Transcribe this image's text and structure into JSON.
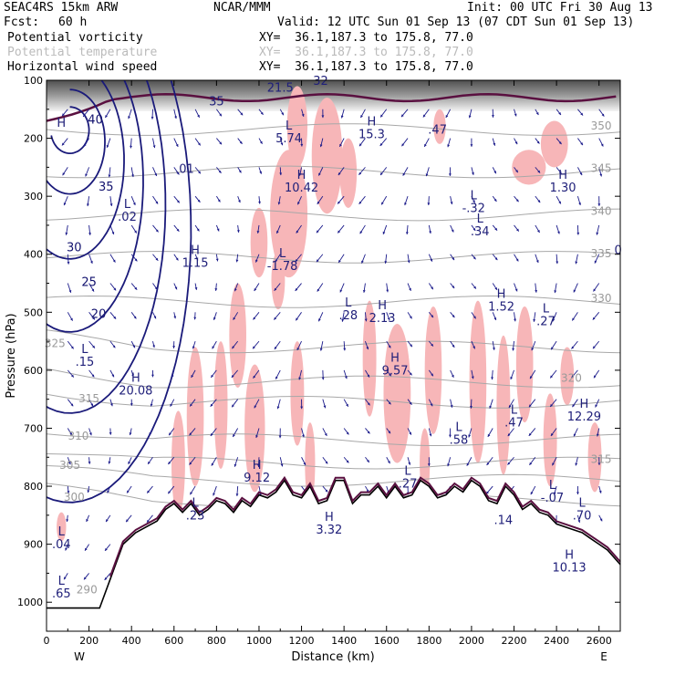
{
  "header": {
    "model": "SEAC4RS 15km ARW",
    "org": "NCAR/MMM",
    "init": "Init: 00 UTC Fri 30 Aug 13",
    "fcst_label": "Fcst:",
    "fcst_value": "60 h",
    "valid": "Valid: 12 UTC Sun 01 Sep 13 (07 CDT Sun 01 Sep 13)"
  },
  "fields": [
    {
      "name": "Potential vorticity",
      "xy": "XY=  36.1,187.3 to 175.8, 77.0",
      "color": "#000000"
    },
    {
      "name": "Potential temperature",
      "xy": "XY=  36.1,187.3 to 175.8, 77.0",
      "color": "#bbbbbb"
    },
    {
      "name": "Horizontal wind speed",
      "xy": "XY=  36.1,187.3 to 175.8, 77.0",
      "color": "#000000"
    }
  ],
  "colors": {
    "pv_fill": "#f7b6b8",
    "wind_contour": "#1a1a7a",
    "theta_contour": "#a8a8a8",
    "pv_contour": "#5a1040",
    "vectors": "#1a1a8a",
    "terrain": "#000000"
  },
  "chart_data": {
    "type": "cross-section",
    "xlabel": "Distance (km)",
    "ylabel": "Pressure (hPa)",
    "xlim": [
      0,
      2700
    ],
    "ylim": [
      1050,
      100
    ],
    "x_ticks": [
      "0",
      "200",
      "400",
      "600",
      "800",
      "1000",
      "1200",
      "1400",
      "1600",
      "1800",
      "2000",
      "2200",
      "2400",
      "2600"
    ],
    "y_ticks": [
      "100",
      "200",
      "300",
      "400",
      "500",
      "600",
      "700",
      "800",
      "900",
      "1000"
    ],
    "west_label": "W",
    "east_label": "E",
    "terrain": {
      "x": [
        0,
        250,
        300,
        360,
        420,
        470,
        520,
        560,
        600,
        640,
        680,
        720,
        760,
        800,
        840,
        880,
        920,
        960,
        1000,
        1040,
        1080,
        1120,
        1160,
        1200,
        1240,
        1280,
        1320,
        1360,
        1400,
        1440,
        1480,
        1520,
        1560,
        1600,
        1640,
        1680,
        1720,
        1760,
        1800,
        1840,
        1880,
        1920,
        1960,
        2000,
        2040,
        2080,
        2120,
        2160,
        2200,
        2240,
        2280,
        2320,
        2360,
        2400,
        2440,
        2480,
        2520,
        2560,
        2600,
        2640,
        2700
      ],
      "p": [
        1010,
        1010,
        960,
        900,
        880,
        870,
        860,
        840,
        830,
        845,
        830,
        850,
        840,
        825,
        830,
        845,
        825,
        835,
        815,
        820,
        810,
        790,
        815,
        820,
        800,
        830,
        825,
        790,
        790,
        830,
        815,
        815,
        800,
        820,
        800,
        820,
        815,
        790,
        800,
        820,
        815,
        800,
        810,
        790,
        800,
        825,
        830,
        800,
        815,
        840,
        830,
        845,
        850,
        865,
        870,
        875,
        880,
        890,
        900,
        910,
        935
      ]
    },
    "wind_labels": [
      {
        "text": "40",
        "x": 230,
        "p": 175
      },
      {
        "text": "35",
        "x": 280,
        "p": 290
      },
      {
        "text": "30",
        "x": 130,
        "p": 395
      },
      {
        "text": "25",
        "x": 200,
        "p": 455
      },
      {
        "text": "20",
        "x": 245,
        "p": 510
      }
    ],
    "theta_labels": [
      {
        "text": "350",
        "x": 2610,
        "p": 185
      },
      {
        "text": "345",
        "x": 2610,
        "p": 258
      },
      {
        "text": "340",
        "x": 2610,
        "p": 332
      },
      {
        "text": "335",
        "x": 2610,
        "p": 405
      },
      {
        "text": "330",
        "x": 2610,
        "p": 482
      },
      {
        "text": "325",
        "x": 40,
        "p": 560
      },
      {
        "text": "320",
        "x": 2470,
        "p": 620
      },
      {
        "text": "315",
        "x": 200,
        "p": 655
      },
      {
        "text": "310",
        "x": 150,
        "p": 720
      },
      {
        "text": "315",
        "x": 2610,
        "p": 760
      },
      {
        "text": "305",
        "x": 110,
        "p": 770
      },
      {
        "text": "300",
        "x": 130,
        "p": 825
      },
      {
        "text": "290",
        "x": 190,
        "p": 985
      }
    ],
    "extrema": [
      {
        "mark": "H",
        "value": "",
        "x": 70,
        "p": 180
      },
      {
        "mark": "L",
        "value": "5.74",
        "x": 1140,
        "p": 185
      },
      {
        "mark": "H",
        "value": "15.3",
        "x": 1530,
        "p": 178
      },
      {
        "mark": "H",
        "value": "10.42",
        "x": 1200,
        "p": 270
      },
      {
        "mark": "L",
        "value": "-.32",
        "x": 2010,
        "p": 305
      },
      {
        "mark": "H",
        "value": "1.30",
        "x": 2430,
        "p": 270
      },
      {
        "mark": "L",
        "value": ".34",
        "x": 2040,
        "p": 345
      },
      {
        "mark": "L",
        "value": ".02",
        "x": 380,
        "p": 320
      },
      {
        "mark": "H",
        "value": "1.15",
        "x": 700,
        "p": 400
      },
      {
        "mark": "L",
        "value": "-1.78",
        "x": 1110,
        "p": 405
      },
      {
        "mark": "L",
        "value": ".28",
        "x": 1420,
        "p": 490
      },
      {
        "mark": "H",
        "value": "2.13",
        "x": 1580,
        "p": 495
      },
      {
        "mark": "H",
        "value": "1.52",
        "x": 2140,
        "p": 475
      },
      {
        "mark": "L",
        "value": ".27",
        "x": 2350,
        "p": 500
      },
      {
        "mark": "L",
        "value": ".15",
        "x": 180,
        "p": 570
      },
      {
        "mark": "H",
        "value": "20.08",
        "x": 420,
        "p": 620
      },
      {
        "mark": "H",
        "value": "9.57",
        "x": 1640,
        "p": 585
      },
      {
        "mark": "H",
        "value": "12.29",
        "x": 2530,
        "p": 665
      },
      {
        "mark": "L",
        "value": ".47",
        "x": 2200,
        "p": 675
      },
      {
        "mark": "L",
        "value": ".58",
        "x": 1940,
        "p": 705
      },
      {
        "mark": "H",
        "value": "9.12",
        "x": 990,
        "p": 770
      },
      {
        "mark": "L",
        "value": ".27",
        "x": 1700,
        "p": 780
      },
      {
        "mark": "L",
        "value": "-.07",
        "x": 2380,
        "p": 805
      },
      {
        "mark": "L",
        "value": ".23",
        "x": 700,
        "p": 835
      },
      {
        "mark": "L",
        "value": ".70",
        "x": 2520,
        "p": 835
      },
      {
        "mark": "H",
        "value": "3.32",
        "x": 1330,
        "p": 860
      },
      {
        "mark": "L",
        "value": ".04",
        "x": 70,
        "p": 885
      },
      {
        "mark": "H",
        "value": "10.13",
        "x": 2460,
        "p": 925
      },
      {
        "mark": "L",
        "value": ".65",
        "x": 70,
        "p": 970
      }
    ],
    "top_labels": [
      {
        "text": "32",
        "x": 1290,
        "p": 108
      },
      {
        "text": "21.5",
        "x": 1100,
        "p": 120
      },
      {
        "text": "35",
        "x": 800,
        "p": 143
      },
      {
        "text": ".47",
        "x": 1840,
        "p": 192
      },
      {
        "text": "0",
        "x": 2690,
        "p": 400
      },
      {
        "text": ".01",
        "x": 650,
        "p": 260
      },
      {
        "text": ".14",
        "x": 2150,
        "p": 865
      }
    ]
  }
}
